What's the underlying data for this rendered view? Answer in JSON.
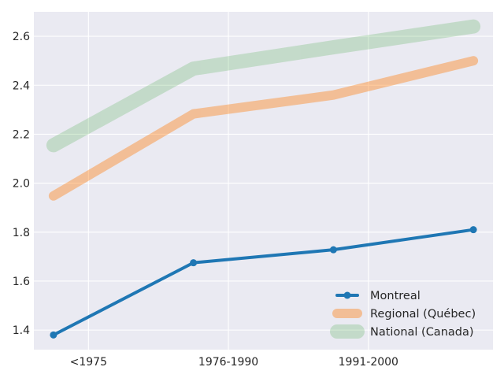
{
  "chart_data": {
    "type": "line",
    "title": "",
    "xlabel": "",
    "ylabel": "",
    "x_positions": [
      0,
      1,
      2,
      3
    ],
    "xtick_positions": [
      0.25,
      1.25,
      2.25
    ],
    "xtick_labels": [
      "<1975",
      "1976-1990",
      "1991-2000"
    ],
    "xlim": [
      -0.14,
      3.14
    ],
    "ylim": [
      1.32,
      2.7
    ],
    "yticks": [
      1.4,
      1.6,
      1.8,
      2.0,
      2.2,
      2.4,
      2.6
    ],
    "ytick_labels": [
      "1.4",
      "1.6",
      "1.8",
      "2.0",
      "2.2",
      "2.4",
      "2.6"
    ],
    "grid": true,
    "legend_position": "lower-right",
    "background_color": "#eaeaf2",
    "series": [
      {
        "name": "Montreal",
        "values": [
          1.38,
          1.675,
          1.728,
          1.81
        ],
        "color": "#1f77b4",
        "opacity": 1.0,
        "style": "thin"
      },
      {
        "name": "Regional (Québec)",
        "values": [
          1.948,
          2.283,
          2.36,
          2.5
        ],
        "color": "#ff7f0e",
        "opacity": 0.4,
        "style": "medium"
      },
      {
        "name": "National (Canada)",
        "values": [
          2.155,
          2.468,
          2.555,
          2.64
        ],
        "color": "#2ca02c",
        "opacity": 0.2,
        "style": "thick"
      }
    ]
  }
}
